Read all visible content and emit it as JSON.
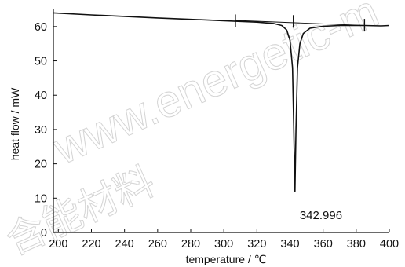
{
  "chart_data": {
    "type": "line",
    "title": "",
    "xlabel": "temperature / ℃",
    "ylabel": "heat flow / mW",
    "xlim": [
      197,
      400
    ],
    "ylim": [
      0,
      65
    ],
    "x_ticks": [
      200,
      220,
      240,
      260,
      280,
      300,
      320,
      340,
      360,
      380,
      400
    ],
    "y_ticks": [
      0,
      10,
      20,
      30,
      40,
      50,
      60
    ],
    "grid": false,
    "series": [
      {
        "color": "#111111",
        "points": [
          [
            197,
            64.0
          ],
          [
            220,
            63.4
          ],
          [
            260,
            62.5
          ],
          [
            300,
            61.7
          ],
          [
            310,
            61.5
          ],
          [
            320,
            61.3
          ],
          [
            330,
            60.9
          ],
          [
            335,
            60.3
          ],
          [
            338,
            59.0
          ],
          [
            340,
            56.0
          ],
          [
            341.5,
            48.0
          ],
          [
            342.3,
            30.0
          ],
          [
            342.996,
            12.0
          ],
          [
            343.6,
            30.0
          ],
          [
            344.5,
            48.0
          ],
          [
            346,
            55.0
          ],
          [
            348,
            58.0
          ],
          [
            352,
            59.5
          ],
          [
            360,
            60.1
          ],
          [
            370,
            60.3
          ],
          [
            385,
            60.3
          ],
          [
            395,
            60.2
          ],
          [
            400,
            60.3
          ]
        ]
      },
      {
        "color": "#111111",
        "points": [
          [
            307,
            61.8
          ],
          [
            385,
            60.3
          ]
        ]
      }
    ],
    "markers": [
      {
        "x": 307,
        "y": 61.7
      },
      {
        "x": 342,
        "y": 61.5
      },
      {
        "x": 385,
        "y": 60.4
      }
    ],
    "annotations": [
      {
        "text": "342.996",
        "x": 342.996,
        "y": 5
      }
    ]
  },
  "watermark": {
    "text": "www.energetic-m",
    "text_cn": "含能材料"
  }
}
